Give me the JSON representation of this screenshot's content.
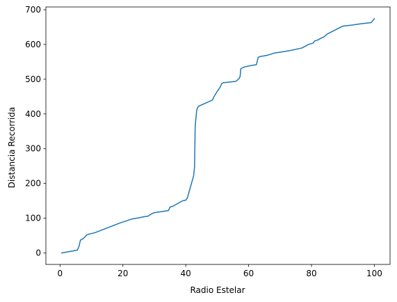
{
  "chart_data": {
    "type": "line",
    "title": "",
    "xlabel": "Radio Estelar",
    "ylabel": "Distancia Recorrida",
    "xlim": [
      -4.5,
      105
    ],
    "ylim": [
      -33,
      708
    ],
    "xticks": [
      0,
      20,
      40,
      60,
      80,
      100
    ],
    "yticks": [
      0,
      100,
      200,
      300,
      400,
      500,
      600,
      700
    ],
    "grid": false,
    "series": [
      {
        "name": "Distancia Recorrida",
        "color": "#1f77b4",
        "x": [
          0.5,
          3,
          5.5,
          6,
          6.5,
          7.5,
          8.5,
          9.5,
          11,
          15,
          19,
          23,
          25,
          26.5,
          28,
          29,
          30,
          34.5,
          35,
          36,
          37,
          38,
          39,
          40,
          40.5,
          42.5,
          42.8,
          43,
          43.5,
          44,
          48.5,
          49,
          50,
          51,
          51.5,
          52,
          56,
          57,
          57.3,
          57.5,
          58.5,
          60,
          62.5,
          63,
          63.5,
          66,
          67,
          68,
          73,
          77,
          79,
          80.5,
          81,
          82,
          83,
          84,
          85,
          90,
          93,
          96,
          99,
          100
        ],
        "y": [
          0,
          4,
          8,
          18,
          37,
          42,
          52,
          55,
          58,
          72,
          86,
          98,
          101,
          104,
          106,
          112,
          116,
          122,
          132,
          135,
          140,
          145,
          150,
          152,
          158,
          222,
          248,
          365,
          412,
          422,
          440,
          450,
          465,
          478,
          488,
          490,
          494,
          502,
          508,
          530,
          535,
          538,
          542,
          562,
          565,
          569,
          572,
          575,
          582,
          590,
          600,
          604,
          610,
          613,
          618,
          622,
          630,
          653,
          656,
          660,
          663,
          674
        ]
      }
    ]
  }
}
